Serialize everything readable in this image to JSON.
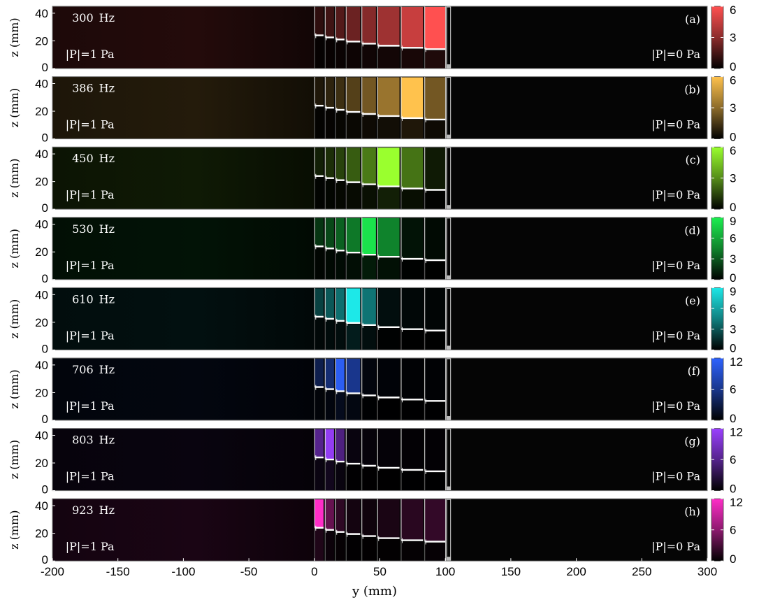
{
  "chart_data": {
    "type": "heatmap",
    "xlabel": "y (mm)",
    "ylabel": "z (mm)",
    "xlim": [
      -200,
      300
    ],
    "ylim": [
      0,
      45
    ],
    "xticks": [
      "-200",
      "-150",
      "-100",
      "-50",
      "0",
      "50",
      "100",
      "150",
      "200",
      "250",
      "300"
    ],
    "yticks": [
      "0",
      "20",
      "40"
    ],
    "left_label": "|P|=1 Pa",
    "right_label": "|P|=0 Pa",
    "freq_unit": "Hz",
    "channels": {
      "count": 8,
      "y_start": [
        0,
        8,
        16,
        24,
        36,
        48,
        66,
        84
      ],
      "y_end": [
        7,
        15,
        23,
        35,
        47,
        65,
        83,
        100
      ],
      "neck_top_z": [
        24,
        22.5,
        21,
        19.5,
        18,
        16.5,
        15,
        14
      ]
    },
    "panels": [
      {
        "label": "(a)",
        "freq": "300",
        "color": "#ff5050",
        "cb_ticks": [
          0,
          3,
          6
        ],
        "cb_max": 6,
        "cb_tick_labels": [
          "0",
          "3",
          "6"
        ],
        "intensity": [
          0.18,
          0.25,
          0.33,
          0.42,
          0.52,
          0.62,
          0.78,
          1.0
        ],
        "field": 0.14
      },
      {
        "label": "(b)",
        "freq": "386",
        "color": "#ffc24d",
        "cb_ticks": [
          0,
          3,
          6
        ],
        "cb_max": 6,
        "cb_tick_labels": [
          "0",
          "3",
          "6"
        ],
        "intensity": [
          0.12,
          0.18,
          0.24,
          0.33,
          0.45,
          0.6,
          1.0,
          0.45
        ],
        "field": 0.14
      },
      {
        "label": "(c)",
        "freq": "450",
        "color": "#9aff2e",
        "cb_ticks": [
          0,
          3,
          6
        ],
        "cb_max": 6,
        "cb_tick_labels": [
          "0",
          "3",
          "6"
        ],
        "intensity": [
          0.12,
          0.18,
          0.26,
          0.36,
          0.48,
          1.0,
          0.45,
          0.1
        ],
        "field": 0.1
      },
      {
        "label": "(d)",
        "freq": "530",
        "color": "#1cef50",
        "cb_ticks": [
          0,
          3,
          6,
          9
        ],
        "cb_max": 9,
        "cb_tick_labels": [
          "0",
          "3",
          "6",
          "9"
        ],
        "intensity": [
          0.22,
          0.3,
          0.4,
          0.5,
          0.95,
          0.55,
          0.08,
          0.04
        ],
        "field": 0.08
      },
      {
        "label": "(e)",
        "freq": "610",
        "color": "#1de8e8",
        "cb_ticks": [
          0,
          3,
          6,
          9
        ],
        "cb_max": 9,
        "cb_tick_labels": [
          "0",
          "3",
          "6",
          "9"
        ],
        "intensity": [
          0.28,
          0.38,
          0.48,
          1.0,
          0.5,
          0.06,
          0.03,
          0.02
        ],
        "field": 0.07
      },
      {
        "label": "(f)",
        "freq": "706",
        "color": "#2e63ff",
        "cb_ticks": [
          0,
          6,
          12
        ],
        "cb_max": 12,
        "cb_tick_labels": [
          "0",
          "6",
          "12"
        ],
        "intensity": [
          0.3,
          0.45,
          0.95,
          0.55,
          0.05,
          0.03,
          0.02,
          0.02
        ],
        "field": 0.06
      },
      {
        "label": "(g)",
        "freq": "803",
        "color": "#9b40ff",
        "cb_ticks": [
          0,
          6,
          12
        ],
        "cb_max": 12,
        "cb_tick_labels": [
          "0",
          "6",
          "12"
        ],
        "intensity": [
          0.55,
          0.95,
          0.5,
          0.06,
          0.04,
          0.03,
          0.02,
          0.02
        ],
        "field": 0.06
      },
      {
        "label": "(h)",
        "freq": "923",
        "color": "#ff2ec8",
        "cb_ticks": [
          0,
          6,
          12
        ],
        "cb_max": 12,
        "cb_tick_labels": [
          "0",
          "6",
          "12"
        ],
        "intensity": [
          1.0,
          0.4,
          0.18,
          0.08,
          0.06,
          0.1,
          0.16,
          0.2
        ],
        "field": 0.1
      }
    ]
  }
}
